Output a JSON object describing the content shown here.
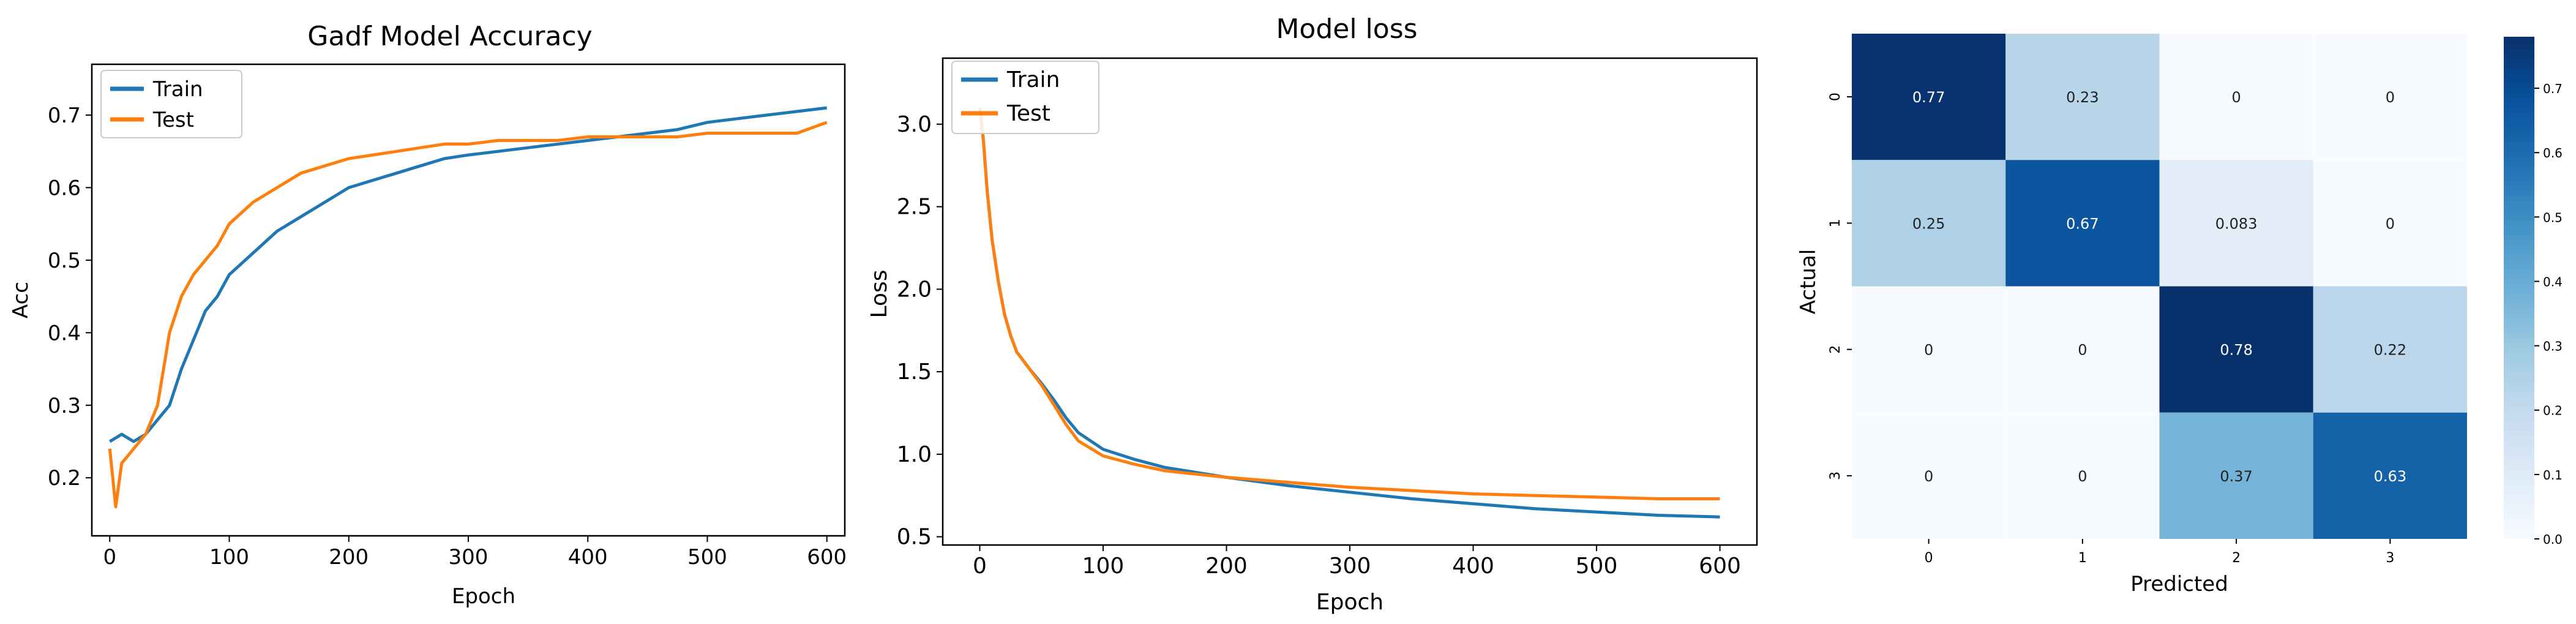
{
  "chart_data": [
    {
      "type": "line",
      "title": "Gadf Model Accuracy",
      "xlabel": "Epoch",
      "ylabel": "Acc",
      "xlim": [
        -15,
        615
      ],
      "ylim": [
        0.12,
        0.77
      ],
      "xticks": [
        0,
        100,
        200,
        300,
        400,
        500,
        600
      ],
      "yticks": [
        0.2,
        0.3,
        0.4,
        0.5,
        0.6,
        0.7
      ],
      "ytick_labels": [
        "0.2",
        "0.3",
        "0.4",
        "0.5",
        "0.6",
        "0.7"
      ],
      "legend": "top-left",
      "series": [
        {
          "name": "Train",
          "color": "#1f77b4",
          "x": [
            0,
            10,
            20,
            30,
            40,
            50,
            60,
            70,
            80,
            90,
            100,
            120,
            140,
            160,
            180,
            200,
            220,
            240,
            260,
            280,
            300,
            325,
            350,
            375,
            400,
            425,
            450,
            475,
            500,
            525,
            550,
            575,
            600
          ],
          "y": [
            0.25,
            0.26,
            0.25,
            0.26,
            0.28,
            0.3,
            0.35,
            0.39,
            0.43,
            0.45,
            0.48,
            0.51,
            0.54,
            0.56,
            0.58,
            0.6,
            0.61,
            0.62,
            0.63,
            0.64,
            0.645,
            0.65,
            0.655,
            0.66,
            0.665,
            0.67,
            0.675,
            0.68,
            0.69,
            0.695,
            0.7,
            0.705,
            0.71
          ]
        },
        {
          "name": "Test",
          "color": "#ff7f0e",
          "x": [
            0,
            5,
            10,
            20,
            30,
            40,
            50,
            60,
            70,
            80,
            90,
            100,
            120,
            140,
            160,
            180,
            200,
            220,
            240,
            260,
            280,
            300,
            325,
            350,
            375,
            400,
            425,
            450,
            475,
            500,
            525,
            550,
            575,
            600
          ],
          "y": [
            0.24,
            0.16,
            0.22,
            0.24,
            0.26,
            0.3,
            0.4,
            0.45,
            0.48,
            0.5,
            0.52,
            0.55,
            0.58,
            0.6,
            0.62,
            0.63,
            0.64,
            0.645,
            0.65,
            0.655,
            0.66,
            0.66,
            0.665,
            0.665,
            0.665,
            0.67,
            0.67,
            0.67,
            0.67,
            0.675,
            0.675,
            0.675,
            0.675,
            0.69
          ]
        }
      ]
    },
    {
      "type": "line",
      "title": "Model loss",
      "xlabel": "Epoch",
      "ylabel": "Loss",
      "xlim": [
        -30,
        630
      ],
      "ylim": [
        0.45,
        3.4
      ],
      "xticks": [
        0,
        100,
        200,
        300,
        400,
        500,
        600
      ],
      "yticks": [
        0.5,
        1.0,
        1.5,
        2.0,
        2.5,
        3.0
      ],
      "ytick_labels": [
        "0.5",
        "1.0",
        "1.5",
        "2.0",
        "2.5",
        "3.0"
      ],
      "legend": "top-left",
      "series": [
        {
          "name": "Train",
          "color": "#1f77b4",
          "x": [
            0,
            3,
            6,
            10,
            15,
            20,
            25,
            30,
            40,
            50,
            60,
            70,
            80,
            100,
            125,
            150,
            175,
            200,
            250,
            300,
            350,
            400,
            450,
            500,
            550,
            600
          ],
          "y": [
            3.1,
            2.9,
            2.6,
            2.3,
            2.05,
            1.85,
            1.72,
            1.62,
            1.52,
            1.43,
            1.33,
            1.22,
            1.13,
            1.03,
            0.97,
            0.92,
            0.89,
            0.86,
            0.81,
            0.77,
            0.73,
            0.7,
            0.67,
            0.65,
            0.63,
            0.62
          ]
        },
        {
          "name": "Test",
          "color": "#ff7f0e",
          "x": [
            0,
            3,
            6,
            10,
            15,
            20,
            25,
            30,
            40,
            50,
            60,
            70,
            80,
            100,
            125,
            150,
            175,
            200,
            250,
            300,
            350,
            400,
            450,
            500,
            550,
            600
          ],
          "y": [
            3.1,
            2.9,
            2.6,
            2.3,
            2.05,
            1.85,
            1.72,
            1.62,
            1.52,
            1.42,
            1.3,
            1.18,
            1.08,
            0.99,
            0.94,
            0.9,
            0.88,
            0.86,
            0.83,
            0.8,
            0.78,
            0.76,
            0.75,
            0.74,
            0.73,
            0.73
          ]
        }
      ]
    },
    {
      "type": "heatmap",
      "title": "",
      "xlabel": "Predicted",
      "ylabel": "Actual",
      "xtick_labels": [
        "0",
        "1",
        "2",
        "3"
      ],
      "ytick_labels": [
        "0",
        "1",
        "2",
        "3"
      ],
      "values": [
        [
          0.77,
          0.23,
          0.0,
          0.0
        ],
        [
          0.25,
          0.67,
          0.083,
          0.0
        ],
        [
          0.0,
          0.0,
          0.78,
          0.22
        ],
        [
          0.0,
          0.0,
          0.37,
          0.63
        ]
      ],
      "cell_labels": [
        [
          "0.77",
          "0.23",
          "0",
          "0"
        ],
        [
          "0.25",
          "0.67",
          "0.083",
          "0"
        ],
        [
          "0",
          "0",
          "0.78",
          "0.22"
        ],
        [
          "0",
          "0",
          "0.37",
          "0.63"
        ]
      ],
      "colormap": "Blues",
      "vmin": 0.0,
      "vmax": 0.78,
      "colorbar_ticks": [
        0.0,
        0.1,
        0.2,
        0.3,
        0.4,
        0.5,
        0.6,
        0.7
      ],
      "colorbar_tick_labels": [
        "0.0",
        "0.1",
        "0.2",
        "0.3",
        "0.4",
        "0.5",
        "0.6",
        "0.7"
      ]
    }
  ]
}
